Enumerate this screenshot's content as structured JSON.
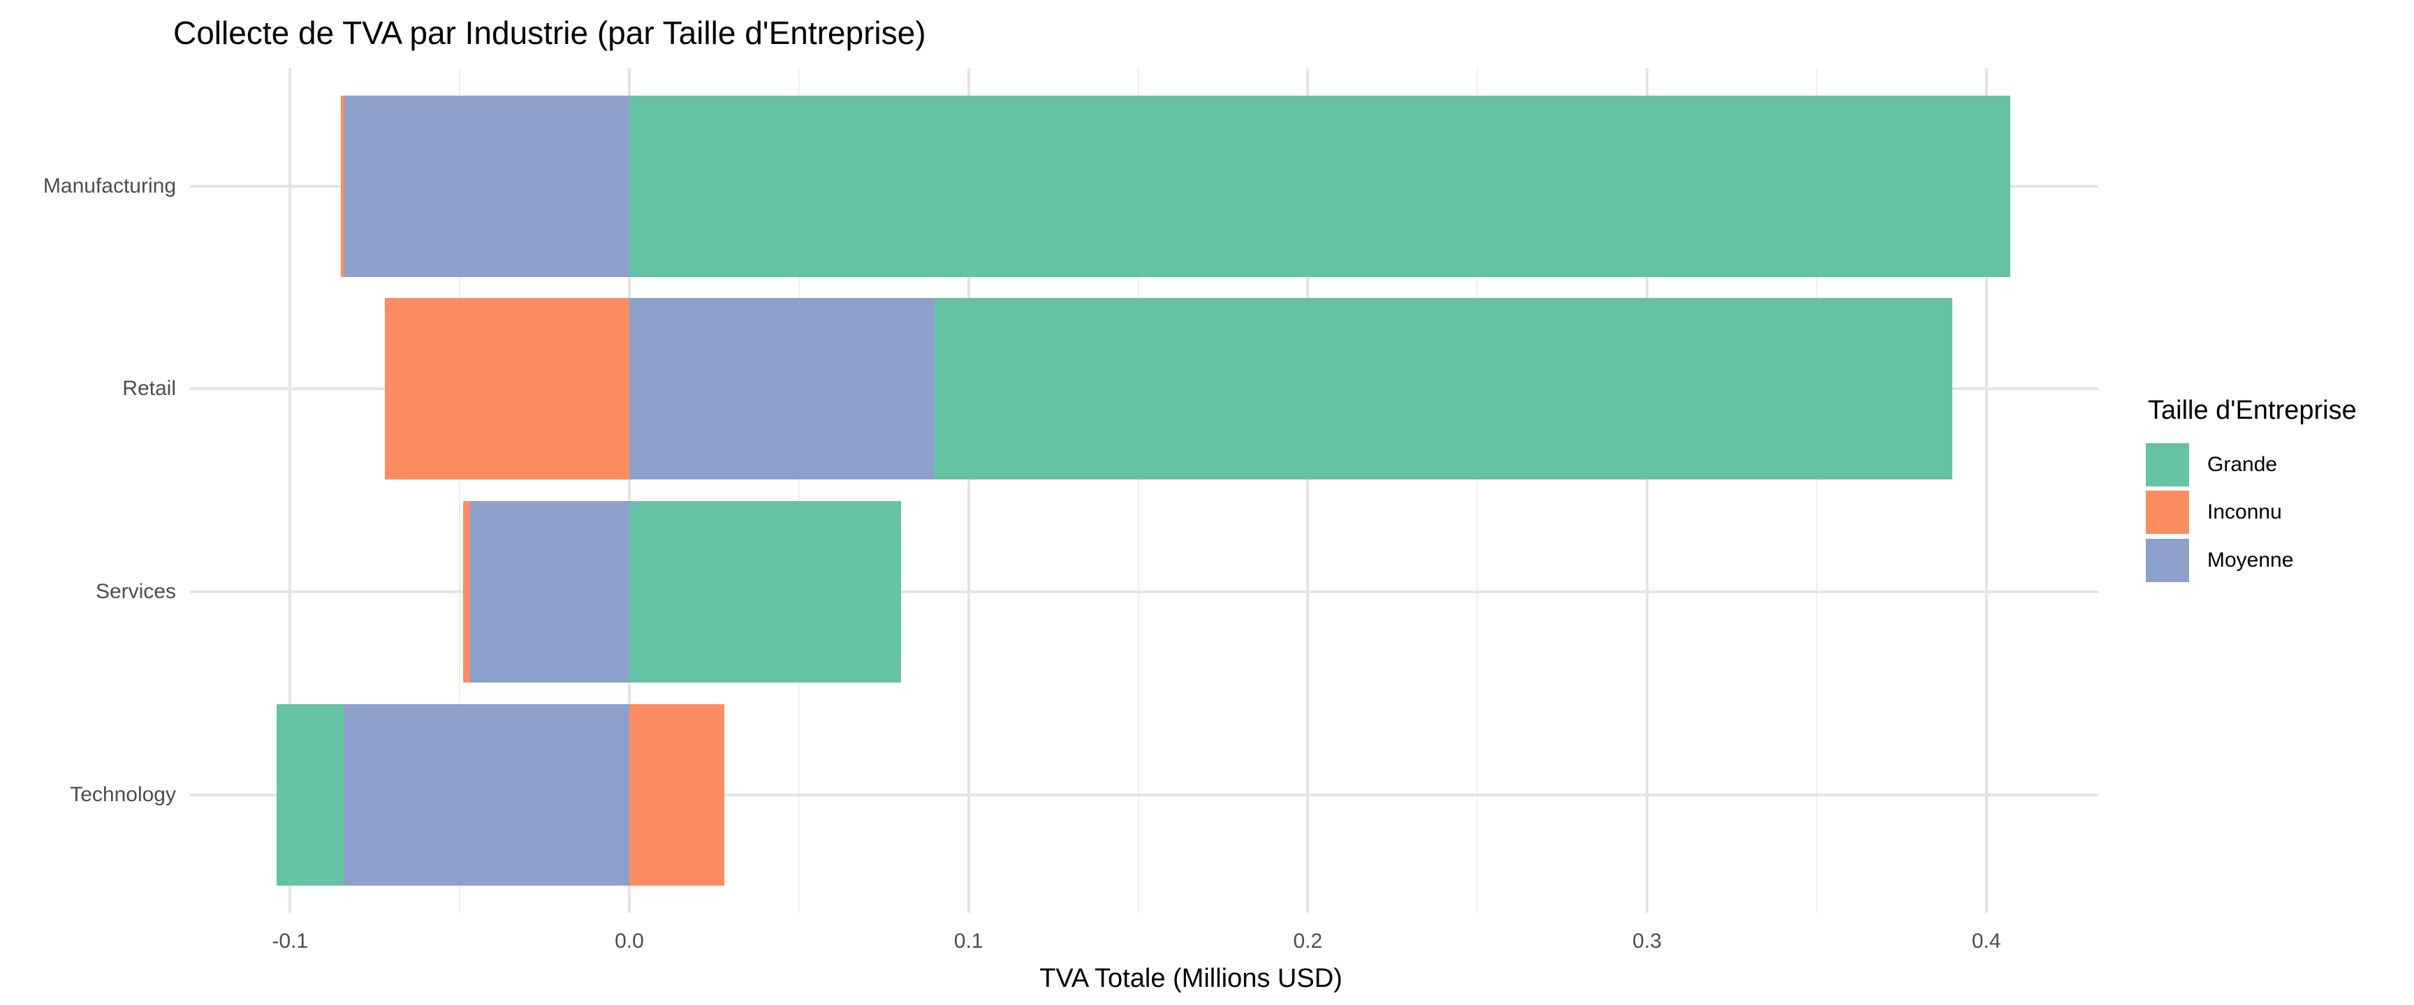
{
  "chart_data": {
    "type": "bar",
    "orientation": "horizontal",
    "stacked": true,
    "title": "Collecte de TVA par Industrie (par Taille d'Entreprise)",
    "xlabel": "TVA Totale (Millions USD)",
    "ylabel": "",
    "legend_title": "Taille d'Entreprise",
    "legend_position": "right",
    "categories": [
      "Manufacturing",
      "Retail",
      "Services",
      "Technology"
    ],
    "series": [
      {
        "name": "Grande",
        "color": "#66C2A5",
        "values": [
          0.407,
          0.3,
          0.08,
          -0.02
        ]
      },
      {
        "name": "Inconnu",
        "color": "#FC8D62",
        "values": [
          -0.001,
          -0.072,
          -0.002,
          0.028
        ]
      },
      {
        "name": "Moyenne",
        "color": "#8DA0CB",
        "values": [
          -0.084,
          0.09,
          -0.047,
          -0.084
        ]
      }
    ],
    "stack_order_from_zero": [
      "Moyenne",
      "Inconnu",
      "Grande"
    ],
    "x_ticks": {
      "values": [
        -0.1,
        0.0,
        0.1,
        0.2,
        0.3,
        0.4
      ],
      "labels": [
        "-0.1",
        "0.0",
        "0.1",
        "0.2",
        "0.3",
        "0.4"
      ]
    },
    "x_minor_ticks": [
      -0.05,
      0.05,
      0.15,
      0.25,
      0.35
    ],
    "xlim": [
      -0.1295,
      0.433
    ],
    "grid": true,
    "colors": {
      "background": "#FFFFFF",
      "grid_major": "#E4E4E4",
      "grid_minor": "#EFEFEF",
      "axis_text": "#4D4D4D",
      "title_text": "#000000"
    }
  }
}
